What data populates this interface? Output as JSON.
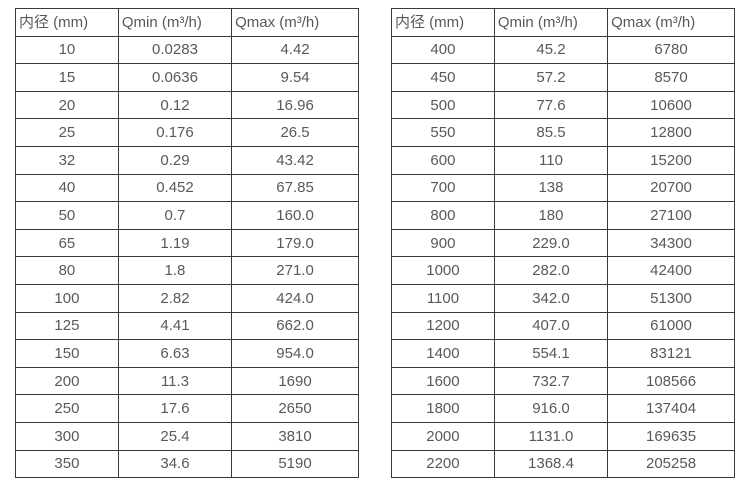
{
  "colors": {
    "border": "#3a3a3a",
    "text": "#595959",
    "background": "#ffffff"
  },
  "tables": [
    {
      "name": "flow-table-small-diameters",
      "headers": [
        "内径 (mm)",
        "Qmin (m³/h)",
        "Qmax (m³/h)"
      ],
      "rows": [
        [
          "10",
          "0.0283",
          "4.42"
        ],
        [
          "15",
          "0.0636",
          "9.54"
        ],
        [
          "20",
          "0.12",
          "16.96"
        ],
        [
          "25",
          "0.176",
          "26.5"
        ],
        [
          "32",
          "0.29",
          "43.42"
        ],
        [
          "40",
          "0.452",
          "67.85"
        ],
        [
          "50",
          "0.7",
          "160.0"
        ],
        [
          "65",
          "1.19",
          "179.0"
        ],
        [
          "80",
          "1.8",
          "271.0"
        ],
        [
          "100",
          "2.82",
          "424.0"
        ],
        [
          "125",
          "4.41",
          "662.0"
        ],
        [
          "150",
          "6.63",
          "954.0"
        ],
        [
          "200",
          "11.3",
          "1690"
        ],
        [
          "250",
          "17.6",
          "2650"
        ],
        [
          "300",
          "25.4",
          "3810"
        ],
        [
          "350",
          "34.6",
          "5190"
        ]
      ]
    },
    {
      "name": "flow-table-large-diameters",
      "headers": [
        "内径 (mm)",
        "Qmin (m³/h)",
        "Qmax (m³/h)"
      ],
      "rows": [
        [
          "400",
          "45.2",
          "6780"
        ],
        [
          "450",
          "57.2",
          "8570"
        ],
        [
          "500",
          "77.6",
          "10600"
        ],
        [
          "550",
          "85.5",
          "12800"
        ],
        [
          "600",
          "110",
          "15200"
        ],
        [
          "700",
          "138",
          "20700"
        ],
        [
          "800",
          "180",
          "27100"
        ],
        [
          "900",
          "229.0",
          "34300"
        ],
        [
          "1000",
          "282.0",
          "42400"
        ],
        [
          "1100",
          "342.0",
          "51300"
        ],
        [
          "1200",
          "407.0",
          "61000"
        ],
        [
          "1400",
          "554.1",
          "83121"
        ],
        [
          "1600",
          "732.7",
          "108566"
        ],
        [
          "1800",
          "916.0",
          "137404"
        ],
        [
          "2000",
          "1131.0",
          "169635"
        ],
        [
          "2200",
          "1368.4",
          "205258"
        ]
      ]
    }
  ]
}
